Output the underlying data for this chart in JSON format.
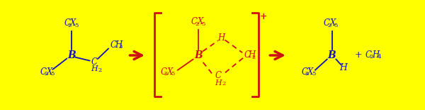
{
  "bg_outer": "#FFFF00",
  "bg_inner": "#FFFFFF",
  "blue": "#1010BB",
  "red": "#CC1111",
  "fig_width": 6.0,
  "fig_height": 1.55,
  "dpi": 100,
  "border_thickness": 6,
  "xlim": [
    0,
    600
  ],
  "ylim": [
    0,
    155
  ]
}
